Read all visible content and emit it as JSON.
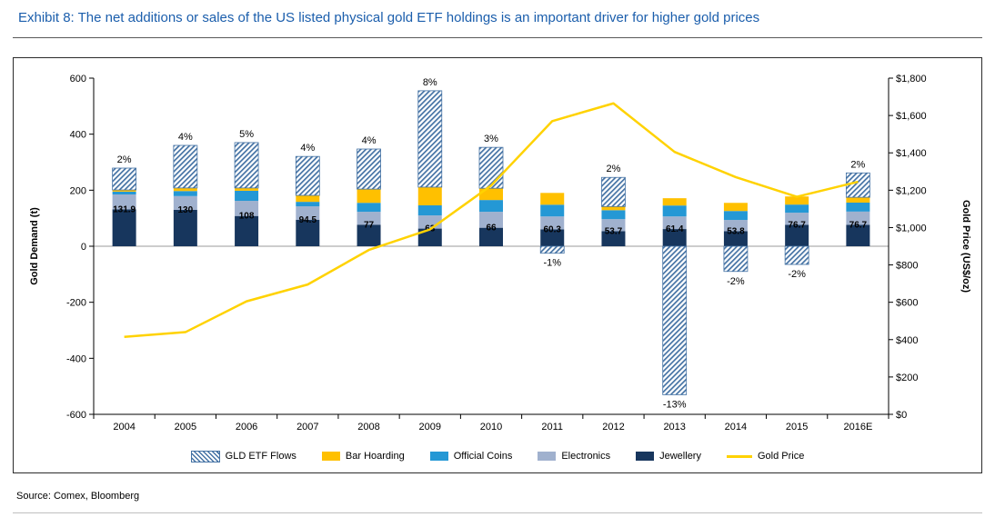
{
  "header": {
    "title": "Exhibit 8: The net additions or sales of the US listed physical gold ETF holdings is an important driver for higher gold prices"
  },
  "footer": {
    "source": "Source: Comex, Bloomberg"
  },
  "colors": {
    "title_blue": "#1B5EAC",
    "axis_line": "#000000",
    "zero_line": "#9b9b9b"
  },
  "chart_data": {
    "type": "bar",
    "subtype": "stacked-column-with-right-axis-line",
    "title": "Exhibit 8: The net additions or sales of the US listed physical gold ETF holdings is an important driver for higher gold prices",
    "categories": [
      "2004",
      "2005",
      "2006",
      "2007",
      "2008",
      "2009",
      "2010",
      "2011",
      "2012",
      "2013",
      "2014",
      "2015",
      "2016E"
    ],
    "series": [
      {
        "name": "Jewellery",
        "color": "#17365D",
        "values": [
          131.9,
          130,
          108,
          94.5,
          77,
          63,
          66,
          60.3,
          53.7,
          61.4,
          53.8,
          76.7,
          76.7
        ]
      },
      {
        "name": "Electronics",
        "color": "#A0B1CE",
        "values": [
          53,
          49,
          54,
          48,
          46,
          47,
          57,
          46,
          43,
          45,
          40,
          43,
          47
        ]
      },
      {
        "name": "Official Coins",
        "color": "#2498D5",
        "values": [
          10,
          18,
          36,
          16,
          32,
          36,
          42,
          42,
          32,
          39,
          32,
          29,
          32
        ]
      },
      {
        "name": "Bar Hoarding",
        "color": "#FFC000",
        "values": [
          6,
          11,
          10,
          23,
          49,
          65,
          42,
          42,
          13,
          26,
          29,
          29,
          19
        ]
      },
      {
        "name": "GLD ETF Flows",
        "color": "hatch",
        "hatch_color": "#4472A4",
        "values": [
          78,
          152,
          162,
          139,
          143,
          344,
          146,
          -25,
          104,
          -530,
          -90,
          -65,
          87
        ]
      }
    ],
    "line_series": {
      "name": "Gold Price",
      "color": "#FFD200",
      "axis": "right",
      "values": [
        415,
        440,
        605,
        695,
        880,
        990,
        1225,
        1570,
        1665,
        1405,
        1270,
        1165,
        1245
      ]
    },
    "total_pct_labels": [
      "2%",
      "4%",
      "5%",
      "4%",
      "4%",
      "8%",
      "3%",
      "-1%",
      "2%",
      "-13%",
      "-2%",
      "-2%",
      "2%"
    ],
    "jewellery_value_labels": [
      "131.9",
      "130",
      "108",
      "94.5",
      "77",
      "63",
      "66",
      "60.3",
      "53.7",
      "61.4",
      "53.8",
      "76.7",
      "76.7"
    ],
    "left_axis": {
      "label": "Gold Demand (t)",
      "min": -600,
      "max": 600,
      "ticks": [
        600,
        400,
        200,
        0,
        -200,
        -400,
        -600
      ]
    },
    "right_axis": {
      "label": "Gold Price (US$/oz)",
      "min": 0,
      "max": 1800,
      "tick_values": [
        1800,
        1600,
        1400,
        1200,
        1000,
        800,
        600,
        400,
        200,
        0
      ],
      "tick_labels": [
        "$1,800",
        "$1,600",
        "$1,400",
        "$1,200",
        "$1,000",
        "$800",
        "$600",
        "$400",
        "$200",
        "$0"
      ]
    },
    "legend": [
      "GLD ETF Flows",
      "Bar Hoarding",
      "Official Coins",
      "Electronics",
      "Jewellery",
      "Gold Price"
    ],
    "grid": "off",
    "legend_position": "bottom"
  }
}
